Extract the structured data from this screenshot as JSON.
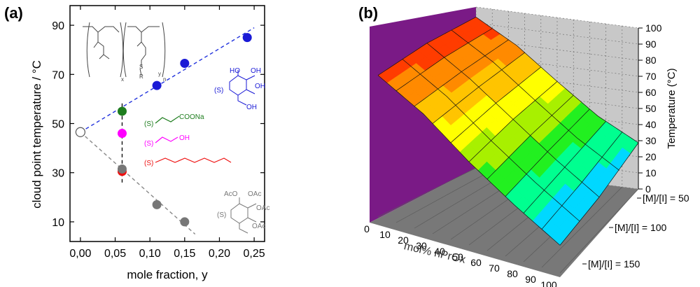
{
  "chart_data": [
    {
      "type": "scatter",
      "panel_label": "(a)",
      "title": "",
      "xlabel": "mole fraction, y",
      "ylabel": "cloud point temperature / °C",
      "xlim": [
        -0.015,
        0.265
      ],
      "ylim": [
        2,
        98
      ],
      "x_ticks": [
        "0,00",
        "0,05",
        "0,10",
        "0,15",
        "0,20",
        "0,25"
      ],
      "x_tick_values": [
        0.0,
        0.05,
        0.1,
        0.15,
        0.2,
        0.25
      ],
      "y_ticks": [
        "10",
        "30",
        "50",
        "70",
        "90"
      ],
      "y_tick_values": [
        10,
        30,
        50,
        70,
        90
      ],
      "start_point": {
        "x": 0.0,
        "y": 46.5
      },
      "series": [
        {
          "name": "glucose",
          "color": "#1a1ad6",
          "points": [
            {
              "x": 0.11,
              "y": 65.5
            },
            {
              "x": 0.15,
              "y": 74.5
            },
            {
              "x": 0.24,
              "y": 85.0
            }
          ]
        },
        {
          "name": "carboxylate",
          "color": "#1e7d1e",
          "points": [
            {
              "x": 0.06,
              "y": 55.0
            }
          ]
        },
        {
          "name": "hydroxyethyl",
          "color": "#ff00ff",
          "points": [
            {
              "x": 0.06,
              "y": 46.0
            }
          ]
        },
        {
          "name": "octyl",
          "color": "#ee1111",
          "points": [
            {
              "x": 0.06,
              "y": 30.5
            }
          ]
        },
        {
          "name": "acetyl glucose",
          "color": "#777777",
          "points": [
            {
              "x": 0.06,
              "y": 31.5
            },
            {
              "x": 0.11,
              "y": 17.0
            },
            {
              "x": 0.15,
              "y": 10.0
            }
          ]
        }
      ],
      "trend_lines": [
        {
          "name": "blue trend",
          "color": "#2233dd",
          "x": [
            0.0,
            0.25
          ],
          "y": [
            46.5,
            89.0
          ]
        },
        {
          "name": "gray trend",
          "color": "#888888",
          "x": [
            0.0,
            0.165
          ],
          "y": [
            46.5,
            5.0
          ]
        }
      ],
      "vertical_guide": {
        "x": 0.06,
        "y": [
          26.0,
          59.0
        ]
      },
      "annotations": {
        "polymer_subscripts": [
          "x",
          "n",
          "y"
        ],
        "polymer_S": "S",
        "polymer_R": "R",
        "cooNa_label": "COONa",
        "s_label": "(S)",
        "oh_label": "OH",
        "ho_label": "HO",
        "aco_label": "AcO",
        "oac_label": "OAc"
      }
    },
    {
      "type": "surface3d",
      "panel_label": "(b)",
      "zlabel": "Temperature (°C)",
      "z_ticks": [
        "0",
        "10",
        "20",
        "30",
        "40",
        "50",
        "60",
        "70",
        "80",
        "90",
        "100"
      ],
      "z_tick_values": [
        0,
        10,
        20,
        30,
        40,
        50,
        60,
        70,
        80,
        90,
        100
      ],
      "xlabel": "mol% nPrOx",
      "x_ticks": [
        "0",
        "10",
        "20",
        "30",
        "40",
        "50",
        "60",
        "70",
        "80",
        "90",
        "100"
      ],
      "x_tick_values": [
        0,
        10,
        20,
        30,
        40,
        50,
        60,
        70,
        80,
        90,
        100
      ],
      "y_ticks": [
        "[M]/[I] = 50",
        "[M]/[I] = 100",
        "[M]/[I] = 150"
      ],
      "y_values": [
        50,
        100,
        150
      ],
      "surface_x": [
        0,
        25,
        50,
        75,
        100
      ],
      "surface_z": [
        [
          98,
          83,
          63,
          44,
          30
        ],
        [
          97,
          80,
          60,
          40,
          22
        ],
        [
          92,
          76,
          54,
          35,
          18
        ]
      ],
      "color_bands": [
        "#1d28e0",
        "#00a0ff",
        "#00d8ff",
        "#00ff90",
        "#22f020",
        "#a8f000",
        "#ffff00",
        "#ffc400",
        "#ff8a00",
        "#ff3c00",
        "#ff0000"
      ],
      "wall_color": "#7a1a86"
    }
  ]
}
